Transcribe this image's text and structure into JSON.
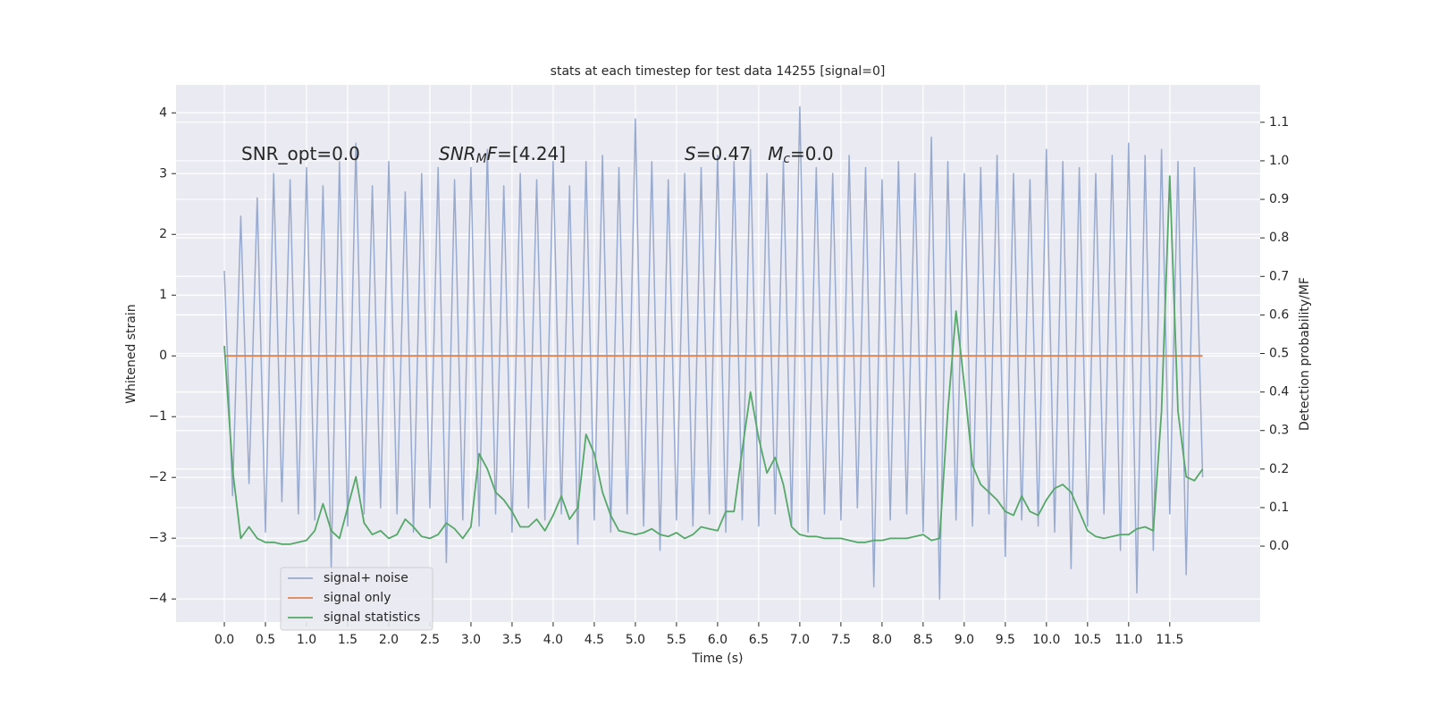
{
  "chart_data": {
    "type": "line",
    "title": "stats at each timestep for test data 14255 [signal=0]",
    "xlabel": "Time (s)",
    "ylabel": "Whitened strain",
    "y2label": "Detection probability/MF",
    "annotations": [
      [
        {
          "text": "SNR_opt=0.0"
        }
      ],
      [
        {
          "text": "SNR",
          "italic": true
        },
        {
          "text": "M",
          "italic": true,
          "sub": true
        },
        {
          "text": "F",
          "italic": true
        },
        {
          "text": "=[4.24]"
        }
      ],
      [
        {
          "text": "S",
          "italic": true
        },
        {
          "text": "=0.47   "
        },
        {
          "text": "M",
          "italic": true
        },
        {
          "text": "c",
          "italic": true,
          "sub": true
        },
        {
          "text": "=0.0"
        }
      ]
    ],
    "x": [
      0,
      0.1,
      0.2,
      0.3,
      0.4,
      0.5,
      0.6,
      0.7,
      0.8,
      0.9,
      1,
      1.1,
      1.2,
      1.3,
      1.4,
      1.5,
      1.6,
      1.7,
      1.8,
      1.9,
      2,
      2.1,
      2.2,
      2.3,
      2.4,
      2.5,
      2.6,
      2.7,
      2.8,
      2.9,
      3,
      3.1,
      3.2,
      3.3,
      3.4,
      3.5,
      3.6,
      3.7,
      3.8,
      3.9,
      4,
      4.1,
      4.2,
      4.3,
      4.4,
      4.5,
      4.6,
      4.7,
      4.8,
      4.9,
      5,
      5.1,
      5.2,
      5.3,
      5.4,
      5.5,
      5.6,
      5.7,
      5.8,
      5.9,
      6,
      6.1,
      6.2,
      6.3,
      6.4,
      6.5,
      6.6,
      6.7,
      6.8,
      6.9,
      7,
      7.1,
      7.2,
      7.3,
      7.4,
      7.5,
      7.6,
      7.7,
      7.8,
      7.9,
      8,
      8.1,
      8.2,
      8.3,
      8.4,
      8.5,
      8.6,
      8.7,
      8.8,
      8.9,
      9,
      9.1,
      9.2,
      9.3,
      9.4,
      9.5,
      9.6,
      9.7,
      9.8,
      9.9,
      10,
      10.1,
      10.2,
      10.3,
      10.4,
      10.5,
      10.6,
      10.7,
      10.8,
      10.9,
      11,
      11.1,
      11.2,
      11.3,
      11.4,
      11.5,
      11.6,
      11.7,
      11.8,
      11.9
    ],
    "series": [
      {
        "name": "signal+ noise",
        "color": "#99aacf",
        "axis": "y",
        "values": [
          1.4,
          -2.3,
          2.3,
          -2.1,
          2.6,
          -2.9,
          3.0,
          -2.4,
          2.9,
          -2.6,
          3.1,
          -2.7,
          2.8,
          -3.5,
          3.2,
          -2.8,
          3.5,
          -2.6,
          2.8,
          -2.5,
          3.2,
          -2.6,
          2.7,
          -2.9,
          3.0,
          -2.5,
          3.1,
          -3.4,
          2.9,
          -2.7,
          3.1,
          -2.8,
          3.4,
          -2.6,
          2.8,
          -2.9,
          3.0,
          -2.5,
          2.9,
          -2.7,
          3.2,
          -2.6,
          2.8,
          -3.1,
          3.2,
          -2.7,
          3.3,
          -2.9,
          3.1,
          -2.6,
          3.9,
          -2.8,
          3.2,
          -3.2,
          2.9,
          -2.7,
          3.0,
          -2.8,
          3.1,
          -2.6,
          3.3,
          -2.9,
          3.2,
          -2.7,
          3.4,
          -2.8,
          3.0,
          -2.6,
          3.2,
          -2.8,
          4.1,
          -2.9,
          3.1,
          -2.6,
          3.0,
          -2.7,
          3.3,
          -2.5,
          3.1,
          -3.8,
          2.9,
          -2.7,
          3.2,
          -2.6,
          3.0,
          -2.9,
          3.6,
          -4.0,
          3.2,
          -2.7,
          3.0,
          -2.8,
          3.1,
          -2.6,
          3.3,
          -3.3,
          3.0,
          -2.7,
          2.9,
          -2.8,
          3.4,
          -2.9,
          3.2,
          -3.5,
          3.1,
          -2.8,
          3.0,
          -2.6,
          3.3,
          -3.2,
          3.5,
          -3.9,
          3.3,
          -3.2,
          3.4,
          -2.6,
          3.2,
          -3.6,
          3.1,
          -2.0
        ]
      },
      {
        "name": "signal only",
        "color": "#dd8452",
        "axis": "y",
        "values": [
          0,
          0,
          0,
          0,
          0,
          0,
          0,
          0,
          0,
          0,
          0,
          0,
          0,
          0,
          0,
          0,
          0,
          0,
          0,
          0,
          0,
          0,
          0,
          0,
          0,
          0,
          0,
          0,
          0,
          0,
          0,
          0,
          0,
          0,
          0,
          0,
          0,
          0,
          0,
          0,
          0,
          0,
          0,
          0,
          0,
          0,
          0,
          0,
          0,
          0,
          0,
          0,
          0,
          0,
          0,
          0,
          0,
          0,
          0,
          0,
          0,
          0,
          0,
          0,
          0,
          0,
          0,
          0,
          0,
          0,
          0,
          0,
          0,
          0,
          0,
          0,
          0,
          0,
          0,
          0,
          0,
          0,
          0,
          0,
          0,
          0,
          0,
          0,
          0,
          0,
          0,
          0,
          0,
          0,
          0,
          0,
          0,
          0,
          0,
          0,
          0,
          0,
          0,
          0,
          0,
          0,
          0,
          0,
          0,
          0,
          0,
          0,
          0,
          0,
          0,
          0,
          0,
          0,
          0,
          0
        ]
      },
      {
        "name": "signal statistics",
        "color": "#55a868",
        "axis": "y2",
        "values": [
          0.52,
          0.2,
          0.02,
          0.05,
          0.02,
          0.01,
          0.01,
          0.005,
          0.005,
          0.01,
          0.015,
          0.04,
          0.11,
          0.04,
          0.02,
          0.1,
          0.18,
          0.06,
          0.03,
          0.04,
          0.02,
          0.03,
          0.07,
          0.05,
          0.025,
          0.02,
          0.03,
          0.06,
          0.045,
          0.02,
          0.05,
          0.24,
          0.2,
          0.14,
          0.12,
          0.09,
          0.05,
          0.05,
          0.07,
          0.04,
          0.08,
          0.13,
          0.07,
          0.1,
          0.29,
          0.24,
          0.14,
          0.08,
          0.04,
          0.035,
          0.03,
          0.035,
          0.045,
          0.03,
          0.025,
          0.035,
          0.02,
          0.03,
          0.05,
          0.045,
          0.04,
          0.09,
          0.09,
          0.25,
          0.4,
          0.28,
          0.19,
          0.23,
          0.16,
          0.05,
          0.03,
          0.025,
          0.025,
          0.02,
          0.02,
          0.02,
          0.015,
          0.01,
          0.01,
          0.015,
          0.015,
          0.02,
          0.02,
          0.02,
          0.025,
          0.03,
          0.015,
          0.02,
          0.35,
          0.61,
          0.42,
          0.21,
          0.16,
          0.14,
          0.12,
          0.09,
          0.08,
          0.13,
          0.09,
          0.08,
          0.12,
          0.15,
          0.16,
          0.14,
          0.09,
          0.04,
          0.025,
          0.02,
          0.025,
          0.03,
          0.03,
          0.045,
          0.05,
          0.04,
          0.35,
          0.96,
          0.35,
          0.18,
          0.17,
          0.2
        ]
      }
    ],
    "xlim": [
      -0.587,
      12.6
    ],
    "ylim": [
      -4.38,
      4.46
    ],
    "y2lim": [
      -0.197,
      1.197
    ],
    "xticks": [
      {
        "value": 0,
        "label": "0.0"
      },
      0.5,
      {
        "value": 1,
        "label": "1.0"
      },
      1.5,
      {
        "value": 2,
        "label": "2.0"
      },
      2.5,
      {
        "value": 3,
        "label": "3.0"
      },
      3.5,
      {
        "value": 4,
        "label": "4.0"
      },
      4.5,
      {
        "value": 5,
        "label": "5.0"
      },
      5.5,
      {
        "value": 6,
        "label": "6.0"
      },
      6.5,
      {
        "value": 7,
        "label": "7.0"
      },
      7.5,
      {
        "value": 8,
        "label": "8.0"
      },
      8.5,
      {
        "value": 9,
        "label": "9.0"
      },
      9.5,
      {
        "value": 10,
        "label": "10.0"
      },
      10.5,
      {
        "value": 11,
        "label": "11.0"
      },
      11.5
    ],
    "yticks": [
      {
        "value": -4,
        "label": "−4"
      },
      {
        "value": -3,
        "label": "−3"
      },
      {
        "value": -2,
        "label": "−2"
      },
      {
        "value": -1,
        "label": "−1"
      },
      0,
      1,
      2,
      3,
      4
    ],
    "y2ticks": [
      {
        "value": 0,
        "label": "0.0"
      },
      0.1,
      0.2,
      0.3,
      0.4,
      0.5,
      0.6,
      0.7,
      0.8,
      0.9,
      {
        "value": 1,
        "label": "1.0"
      },
      1.1
    ],
    "grid": true,
    "legend": "lower left",
    "background": "#eaeaf2"
  }
}
